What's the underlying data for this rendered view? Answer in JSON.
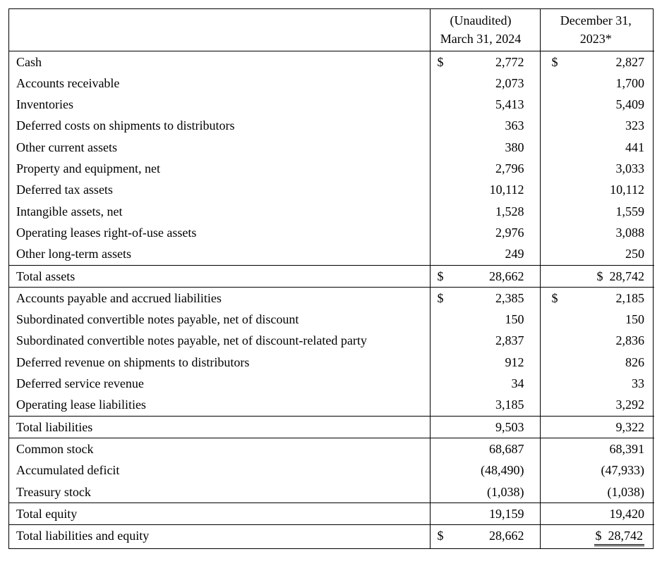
{
  "headers": {
    "col1_line1": "(Unaudited)",
    "col1_line2": "March 31, 2024",
    "col2_line1": "December 31,",
    "col2_line2": "2023*"
  },
  "rows": [
    {
      "label": "Cash",
      "c1": "2,772",
      "c1_dollar": true,
      "c2": "2,827",
      "c2_dollar": true,
      "section_start": true
    },
    {
      "label": "Accounts receivable",
      "c1": "2,073",
      "c2": "1,700"
    },
    {
      "label": "Inventories",
      "c1": "5,413",
      "c2": "5,409"
    },
    {
      "label": "Deferred costs on shipments to distributors",
      "c1": "363",
      "c2": "323"
    },
    {
      "label": "Other current assets",
      "c1": "380",
      "c2": "441"
    },
    {
      "label": "Property and equipment, net",
      "c1": "2,796",
      "c2": "3,033"
    },
    {
      "label": "Deferred tax assets",
      "c1": "10,112",
      "c2": "10,112"
    },
    {
      "label": "Intangible assets, net",
      "c1": "1,528",
      "c2": "1,559"
    },
    {
      "label": "Operating leases right-of-use assets",
      "c1": "2,976",
      "c2": "3,088"
    },
    {
      "label": "Other long-term assets",
      "c1": "249",
      "c2": "250"
    },
    {
      "label": "Total assets",
      "c1": "28,662",
      "c1_dollar": true,
      "c2": "28,742",
      "c2_dollar": true,
      "c2_tight": true,
      "section_start": true
    },
    {
      "label": "Accounts payable and accrued liabilities",
      "c1": "2,385",
      "c1_dollar": true,
      "c2": "2,185",
      "c2_dollar": true,
      "section_start": true
    },
    {
      "label": "Subordinated convertible notes payable, net of discount",
      "c1": "150",
      "c2": "150"
    },
    {
      "label": "Subordinated convertible notes payable, net of discount-related party",
      "c1": "2,837",
      "c2": "2,836",
      "tall": true
    },
    {
      "label": "Deferred revenue on shipments to distributors",
      "c1": "912",
      "c2": "826"
    },
    {
      "label": "Deferred service revenue",
      "c1": "34",
      "c2": "33"
    },
    {
      "label": "Operating lease liabilities",
      "c1": "3,185",
      "c2": "3,292"
    },
    {
      "label": "Total liabilities",
      "c1": "9,503",
      "c2": "9,322",
      "section_start": true
    },
    {
      "label": "Common stock",
      "c1": "68,687",
      "c2": "68,391",
      "section_start": true
    },
    {
      "label": "Accumulated deficit",
      "c1": "(48,490)",
      "c2": "(47,933)"
    },
    {
      "label": "Treasury stock",
      "c1": "(1,038)",
      "c2": "(1,038)"
    },
    {
      "label": "Total equity",
      "c1": "19,159",
      "c2": "19,420",
      "section_start": true
    },
    {
      "label": "Total liabilities and equity",
      "c1": "28,662",
      "c1_dollar": true,
      "c2": "28,742",
      "c2_dollar": true,
      "c2_tight": true,
      "c2_dblunder": true,
      "section_start": true
    }
  ],
  "style": {
    "font_family": "Georgia, serif",
    "text_color": "#000000",
    "border_color": "#000000",
    "background_color": "#ffffff",
    "label_fontsize": 18,
    "amount_fontsize": 18
  }
}
